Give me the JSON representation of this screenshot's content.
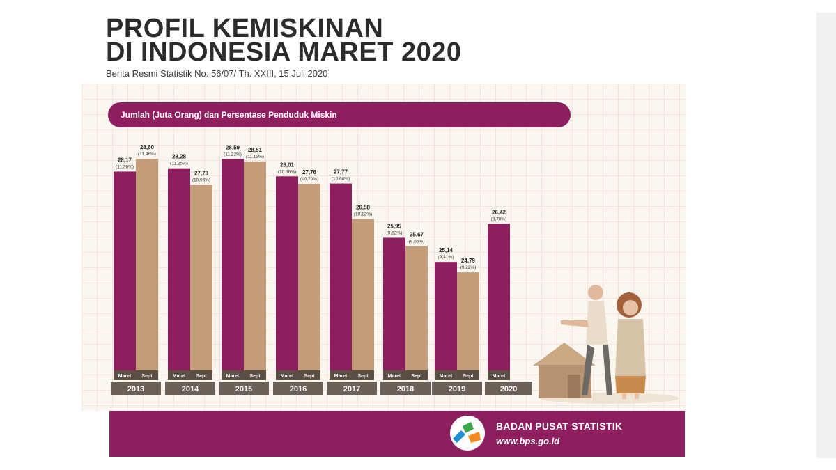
{
  "header": {
    "title_line1": "PROFIL KEMISKINAN",
    "title_line2": "DI INDONESIA MARET 2020",
    "subtitle": "Berita Resmi Statistik No. 56/07/ Th. XXIII, 15 Juli 2020"
  },
  "colors": {
    "maret": "#8e1f5f",
    "sept": "#c39c79",
    "year_band": "#6b6158",
    "label_band": "#5a4e45"
  },
  "chart_data": {
    "type": "bar",
    "title": "Jumlah (Juta Orang) dan Persentase Penduduk Miskin",
    "series": [
      {
        "name": "Maret",
        "values": [
          28.17,
          28.28,
          28.59,
          28.01,
          27.77,
          25.95,
          25.14,
          26.42
        ]
      },
      {
        "name": "Sept",
        "values": [
          28.6,
          27.73,
          28.51,
          27.76,
          26.58,
          25.67,
          24.79,
          null
        ]
      }
    ],
    "categories": [
      "2013",
      "2014",
      "2015",
      "2016",
      "2017",
      "2018",
      "2019",
      "2020"
    ],
    "value_labels": [
      [
        "28,17",
        "28,60"
      ],
      [
        "28,28",
        "27,73"
      ],
      [
        "28,59",
        "28,51"
      ],
      [
        "28,01",
        "27,76"
      ],
      [
        "27,77",
        "26,58"
      ],
      [
        "25,95",
        "25,67"
      ],
      [
        "25,14",
        "24,79"
      ],
      [
        "26,42",
        ""
      ]
    ],
    "pct_labels": [
      [
        "(11,36%)",
        "(11,46%)"
      ],
      [
        "(11,25%)",
        "(10,96%)"
      ],
      [
        "(11,22%)",
        "(11,13%)"
      ],
      [
        "(10,86%)",
        "(10,70%)"
      ],
      [
        "(10,64%)",
        "(10,12%)"
      ],
      [
        "(9,82%)",
        "(9,66%)"
      ],
      [
        "(9,41%)",
        "(9,22%)"
      ],
      [
        "(9,78%)",
        ""
      ]
    ],
    "bar_labels": [
      "Maret",
      "Sept"
    ],
    "ylim": [
      0,
      28.6
    ]
  },
  "footer": {
    "org_name": "BADAN PUSAT STATISTIK",
    "org_url": "www.bps.go.id"
  }
}
